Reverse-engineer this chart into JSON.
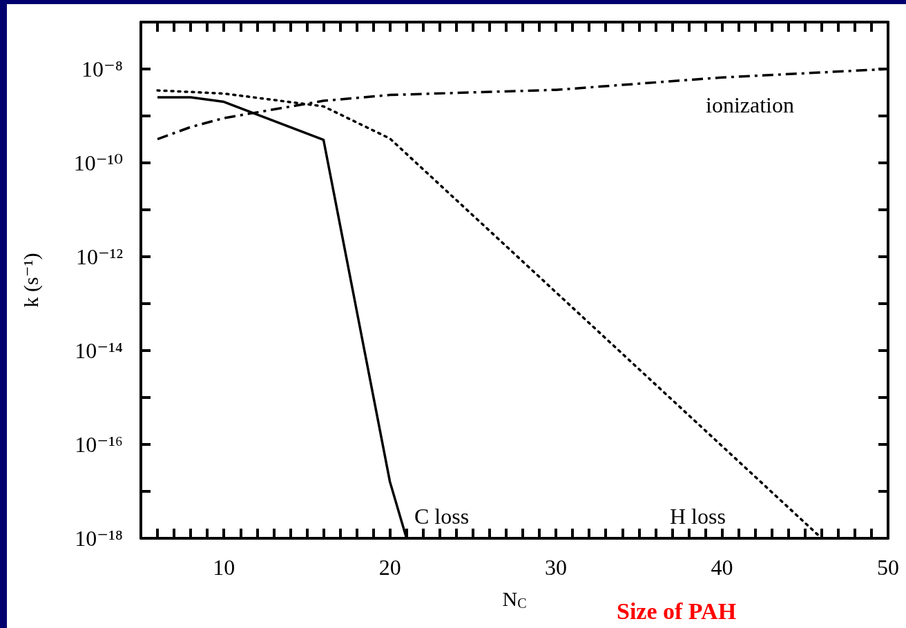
{
  "chart_data": {
    "type": "line",
    "xlabel": "N$_{C}$",
    "ylabel": "k (s⁻¹)",
    "log": "y",
    "grid": false,
    "marker": "none",
    "xlim": [
      5,
      50
    ],
    "xticks": [
      {
        "value": 5,
        "label": null
      },
      {
        "value": 6,
        "label": null
      },
      {
        "value": 7,
        "label": null
      },
      {
        "value": 8,
        "label": null
      },
      {
        "value": 9,
        "label": null
      },
      10,
      {
        "value": 11,
        "label": null
      },
      {
        "value": 12,
        "label": null
      },
      {
        "value": 13,
        "label": null
      },
      {
        "value": 14,
        "label": null
      },
      {
        "value": 15,
        "label": null
      },
      {
        "value": 16,
        "label": null
      },
      {
        "value": 17,
        "label": null
      },
      {
        "value": 18,
        "label": null
      },
      {
        "value": 19,
        "label": null
      },
      20,
      {
        "value": 21,
        "label": null
      },
      {
        "value": 22,
        "label": null
      },
      {
        "value": 23,
        "label": null
      },
      {
        "value": 24,
        "label": null
      },
      {
        "value": 25,
        "label": null
      },
      {
        "value": 26,
        "label": null
      },
      {
        "value": 27,
        "label": null
      },
      {
        "value": 28,
        "label": null
      },
      {
        "value": 29,
        "label": null
      },
      30,
      {
        "value": 31,
        "label": null
      },
      {
        "value": 32,
        "label": null
      },
      {
        "value": 33,
        "label": null
      },
      {
        "value": 34,
        "label": null
      },
      {
        "value": 35,
        "label": null
      },
      {
        "value": 36,
        "label": null
      },
      {
        "value": 37,
        "label": null
      },
      {
        "value": 38,
        "label": null
      },
      {
        "value": 39,
        "label": null
      },
      40,
      {
        "value": 41,
        "label": null
      },
      {
        "value": 42,
        "label": null
      },
      {
        "value": 43,
        "label": null
      },
      {
        "value": 44,
        "label": null
      },
      {
        "value": 45,
        "label": null
      },
      {
        "value": 46,
        "label": null
      },
      {
        "value": 47,
        "label": null
      },
      {
        "value": 48,
        "label": null
      },
      {
        "value": 49,
        "label": null
      },
      50
    ],
    "ylim": [
      1e-18,
      1e-07
    ],
    "yticks": [
      {
        "value": 1e-18,
        "label": "10⁻¹⁸"
      },
      {
        "value": 1e-17,
        "label": null
      },
      {
        "value": 1e-16,
        "label": "10⁻¹⁶"
      },
      {
        "value": 1e-15,
        "label": null
      },
      {
        "value": 1e-14,
        "label": "10⁻¹⁴"
      },
      {
        "value": 1e-13,
        "label": null
      },
      {
        "value": 1e-12,
        "label": "10⁻¹²"
      },
      {
        "value": 1e-11,
        "label": null
      },
      {
        "value": 1e-10,
        "label": "10⁻¹⁰"
      },
      {
        "value": 1e-09,
        "label": null
      },
      {
        "value": 1e-08,
        "label": "10⁻⁸"
      }
    ],
    "series": [
      {
        "color": "#000000",
        "line_style": "solid",
        "x": [
          6,
          8,
          10,
          16,
          20,
          21
        ],
        "values": [
          2.5e-09,
          2.5e-09,
          2e-09,
          3.1e-10,
          1.6e-17,
          1e-18
        ]
      },
      {
        "color": "#000000",
        "line_style": "dotted",
        "x": [
          6,
          10,
          16,
          20,
          46
        ],
        "values": [
          3.5e-09,
          3e-09,
          1.6e-09,
          3.3e-10,
          1e-18
        ]
      },
      {
        "color": "#000000",
        "line_style": "dashed",
        "x": [
          6,
          8,
          10,
          16,
          20,
          30,
          40,
          50
        ],
        "values": [
          3.2e-10,
          5.8e-10,
          9e-10,
          2.1e-09,
          2.8e-09,
          3.6e-09,
          6.6e-09,
          1e-08
        ]
      }
    ],
    "annotations": [
      "ionization",
      "C loss",
      "H loss",
      "Size of PAH"
    ]
  }
}
